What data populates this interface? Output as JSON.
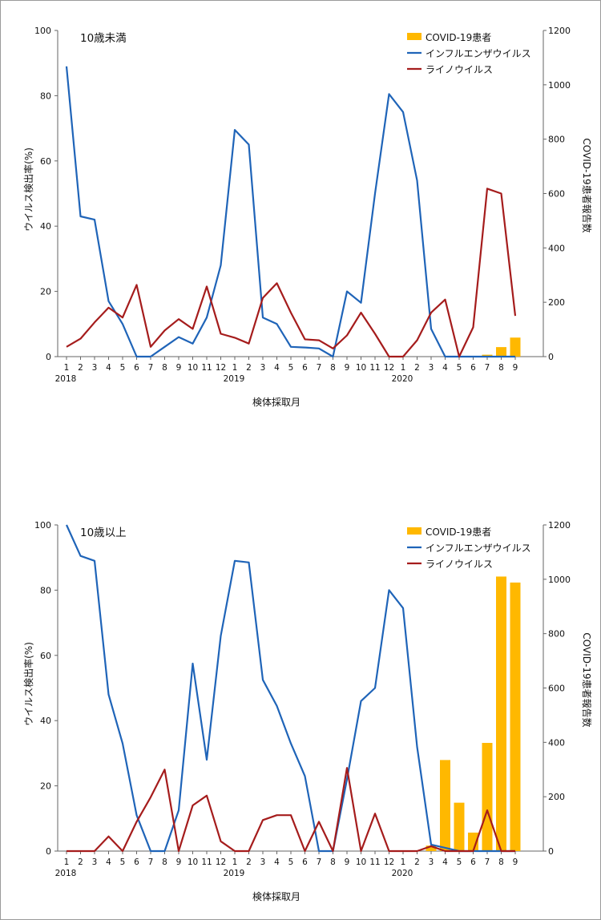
{
  "colors": {
    "covid": "#FFB800",
    "influenza": "#1F64B8",
    "rhinovirus": "#A51C1C",
    "axis": "#666666"
  },
  "chart_data": [
    {
      "type": "line",
      "title": "10歳未満",
      "xlabel": "検体採取月",
      "ylabel": "ウイルス検出率(%)",
      "y2label": "COVID-19患者報告数",
      "ylim": [
        0,
        100
      ],
      "y2lim": [
        0,
        1200
      ],
      "yticks": [
        "0",
        "20",
        "40",
        "60",
        "80",
        "100"
      ],
      "y2ticks": [
        "0",
        "200",
        "400",
        "600",
        "800",
        "1000",
        "1200"
      ],
      "categories": [
        "1",
        "2",
        "3",
        "4",
        "5",
        "6",
        "7",
        "8",
        "9",
        "10",
        "11",
        "12",
        "1",
        "2",
        "3",
        "4",
        "5",
        "6",
        "7",
        "8",
        "9",
        "10",
        "11",
        "12",
        "1",
        "2",
        "3",
        "4",
        "5",
        "6",
        "7",
        "8",
        "9"
      ],
      "year_labels": [
        {
          "label": "2018",
          "index": 0
        },
        {
          "label": "2019",
          "index": 12
        },
        {
          "label": "2020",
          "index": 24
        }
      ],
      "legend_position": "top-right",
      "series": [
        {
          "name": "COVID-19患者",
          "kind": "bar",
          "axis": "right",
          "values": [
            null,
            null,
            null,
            null,
            null,
            null,
            null,
            null,
            null,
            null,
            null,
            null,
            null,
            null,
            null,
            null,
            null,
            null,
            null,
            null,
            null,
            null,
            null,
            null,
            null,
            null,
            null,
            null,
            null,
            null,
            7,
            35,
            70
          ]
        },
        {
          "name": "インフルエンザウイルス",
          "kind": "line",
          "axis": "left",
          "values": [
            89,
            43,
            42,
            17,
            10,
            0,
            0,
            3,
            6,
            4,
            12,
            28,
            69.5,
            65,
            12,
            10,
            3,
            2.8,
            2.5,
            0,
            20,
            16.5,
            50,
            80.5,
            75,
            54,
            8.5,
            0,
            0,
            0,
            0,
            0,
            0
          ]
        },
        {
          "name": "ライノウイルス",
          "kind": "line",
          "axis": "left",
          "values": [
            3,
            5.5,
            10.5,
            15,
            12,
            22,
            3,
            8,
            11.5,
            8.5,
            21.5,
            7,
            5.8,
            4,
            18,
            22.5,
            13.5,
            5.3,
            5,
            2.5,
            6.5,
            13.5,
            7,
            0,
            0,
            5,
            13.5,
            17.5,
            0,
            9,
            51.5,
            50,
            12.5
          ]
        }
      ]
    },
    {
      "type": "line",
      "title": "10歳以上",
      "xlabel": "検体採取月",
      "ylabel": "ウイルス検出率(%)",
      "y2label": "COVID-19患者報告数",
      "ylim": [
        0,
        100
      ],
      "y2lim": [
        0,
        1200
      ],
      "yticks": [
        "0",
        "20",
        "40",
        "60",
        "80",
        "100"
      ],
      "y2ticks": [
        "0",
        "200",
        "400",
        "600",
        "800",
        "1000",
        "1200"
      ],
      "categories": [
        "1",
        "2",
        "3",
        "4",
        "5",
        "6",
        "7",
        "8",
        "9",
        "10",
        "11",
        "12",
        "1",
        "2",
        "3",
        "4",
        "5",
        "6",
        "7",
        "8",
        "9",
        "10",
        "11",
        "12",
        "1",
        "2",
        "3",
        "4",
        "5",
        "6",
        "7",
        "8",
        "9"
      ],
      "year_labels": [
        {
          "label": "2018",
          "index": 0
        },
        {
          "label": "2019",
          "index": 12
        },
        {
          "label": "2020",
          "index": 24
        }
      ],
      "legend_position": "top-right",
      "series": [
        {
          "name": "COVID-19患者",
          "kind": "bar",
          "axis": "right",
          "values": [
            null,
            null,
            null,
            null,
            null,
            null,
            null,
            null,
            null,
            null,
            null,
            null,
            null,
            null,
            null,
            null,
            null,
            null,
            null,
            null,
            null,
            null,
            null,
            null,
            null,
            null,
            20,
            335,
            178,
            68,
            398,
            1010,
            988
          ]
        },
        {
          "name": "インフルエンザウイルス",
          "kind": "line",
          "axis": "left",
          "values": [
            100,
            90.5,
            89,
            48,
            33,
            11,
            0,
            0,
            12.5,
            57.5,
            28,
            66,
            89,
            88.5,
            52.5,
            44.5,
            33,
            23,
            0,
            0,
            22,
            46,
            50,
            80,
            74.5,
            32,
            2,
            1,
            0,
            0,
            0,
            0,
            0
          ]
        },
        {
          "name": "ライノウイルス",
          "kind": "line",
          "axis": "left",
          "values": [
            0,
            0,
            0,
            4.5,
            0,
            9,
            16.5,
            25,
            0,
            14,
            17,
            3,
            0,
            0,
            9.5,
            11,
            11,
            0,
            9,
            0,
            25.5,
            0,
            11.5,
            0,
            0,
            0,
            1.5,
            0,
            0,
            0,
            12.5,
            0,
            0
          ]
        }
      ]
    }
  ]
}
